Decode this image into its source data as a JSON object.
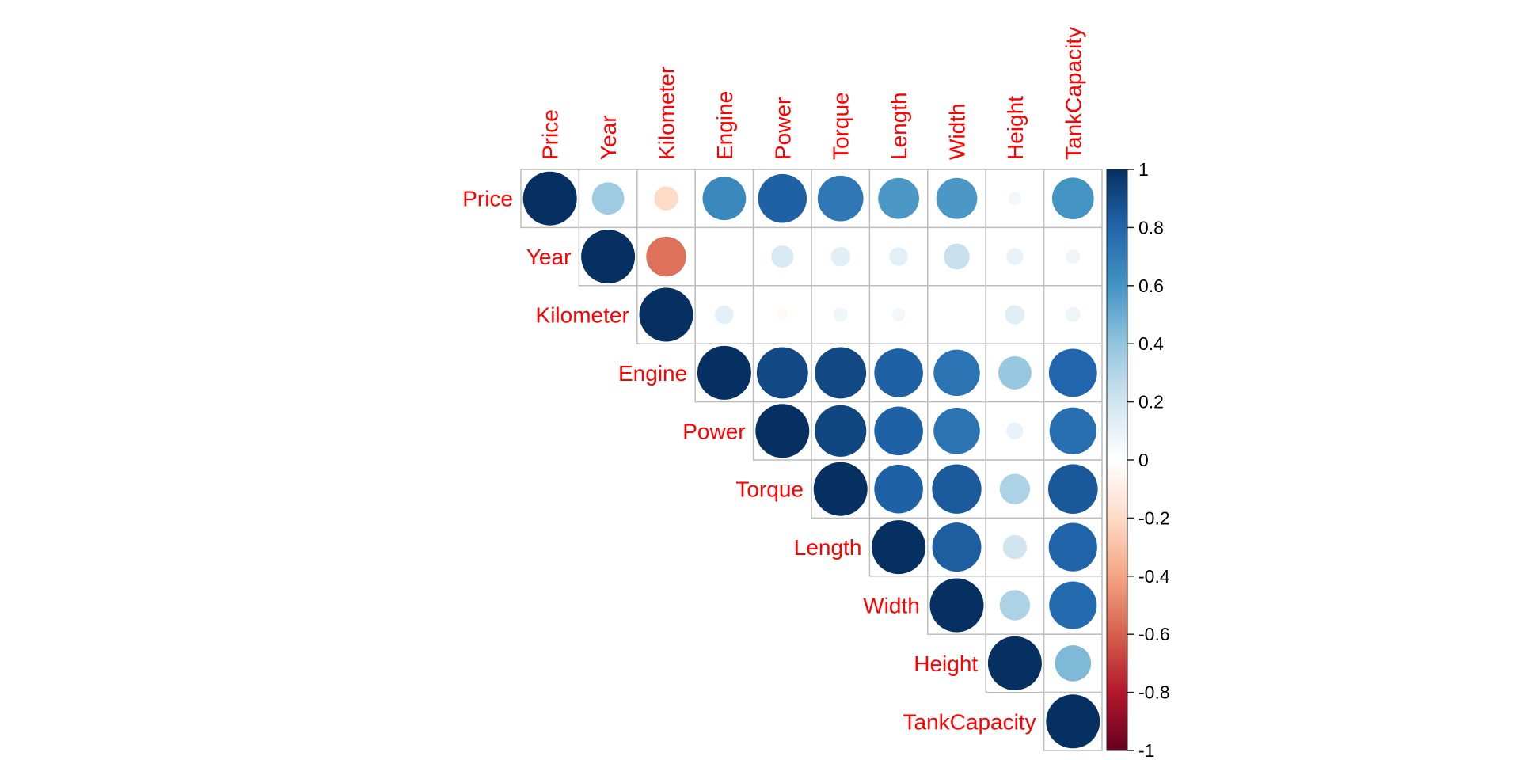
{
  "chart_data": {
    "type": "heatmap",
    "style": "circle",
    "matrix_shape": "upper-triangular",
    "variables": [
      "Price",
      "Year",
      "Kilometer",
      "Engine",
      "Power",
      "Torque",
      "Length",
      "Width",
      "Height",
      "TankCapacity"
    ],
    "correlation_matrix": [
      [
        1.0,
        0.36,
        -0.2,
        0.65,
        0.82,
        0.72,
        0.58,
        0.58,
        0.06,
        0.6
      ],
      [
        null,
        1.0,
        -0.55,
        0.0,
        0.17,
        0.13,
        0.12,
        0.23,
        0.1,
        0.07
      ],
      [
        null,
        null,
        1.0,
        0.12,
        -0.04,
        0.07,
        0.06,
        0.01,
        0.13,
        0.08
      ],
      [
        null,
        null,
        null,
        1.0,
        0.91,
        0.91,
        0.82,
        0.74,
        0.38,
        0.8
      ],
      [
        null,
        null,
        null,
        null,
        1.0,
        0.92,
        0.82,
        0.74,
        0.1,
        0.76
      ],
      [
        null,
        null,
        null,
        null,
        null,
        1.0,
        0.82,
        0.84,
        0.32,
        0.85
      ],
      [
        null,
        null,
        null,
        null,
        null,
        null,
        1.0,
        0.83,
        0.2,
        0.81
      ],
      [
        null,
        null,
        null,
        null,
        null,
        null,
        null,
        1.0,
        0.32,
        0.78
      ],
      [
        null,
        null,
        null,
        null,
        null,
        null,
        null,
        null,
        1.0,
        0.45
      ],
      [
        null,
        null,
        null,
        null,
        null,
        null,
        null,
        null,
        null,
        1.0
      ]
    ],
    "colorbar": {
      "range": [
        -1,
        1
      ],
      "ticks": [
        "1",
        "0.8",
        "0.6",
        "0.4",
        "0.2",
        "0",
        "-0.2",
        "-0.4",
        "-0.6",
        "-0.8",
        "-1"
      ],
      "colors": [
        "#67001F",
        "#B2182B",
        "#D6604D",
        "#F4A582",
        "#FDDBC7",
        "#FFFFFF",
        "#D1E5F0",
        "#92C5DE",
        "#4393C3",
        "#2166AC",
        "#053061"
      ]
    },
    "label_color": "#FF0000",
    "grid_color": "#BEBEBE"
  }
}
